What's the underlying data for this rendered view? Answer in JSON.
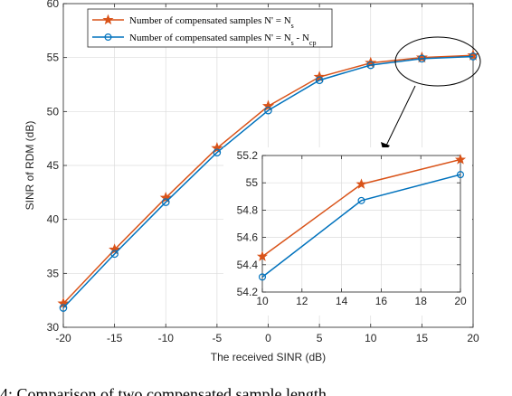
{
  "chart_data": [
    {
      "type": "line",
      "xlabel": "The received SINR (dB)",
      "ylabel": "SINR of RDM (dB)",
      "xlim": [
        -20,
        20
      ],
      "ylim": [
        30,
        60
      ],
      "xticks": [
        "-20",
        "-15",
        "-10",
        "-5",
        "0",
        "5",
        "10",
        "15",
        "20"
      ],
      "yticks": [
        "30",
        "35",
        "40",
        "45",
        "50",
        "55",
        "60"
      ],
      "grid": true,
      "legend_position": "top-left",
      "x": [
        -20,
        -15,
        -10,
        -5,
        0,
        5,
        10,
        15,
        20
      ],
      "series": [
        {
          "name": "Number of compensated samples N' = Ns",
          "legend_base": "Number of compensated samples N' = N",
          "legend_sub": "s",
          "color": "#d95319",
          "marker": "star",
          "values": [
            32.2,
            37.2,
            42.0,
            46.6,
            50.5,
            53.2,
            54.5,
            55.0,
            55.2
          ]
        },
        {
          "name": "Number of compensated samples N' = Ns - Ncp",
          "legend_base": "Number of compensated samples N' = N",
          "legend_sub": "s",
          "legend_mid": " - N",
          "legend_sub2": "cp",
          "color": "#0072bd",
          "marker": "circle",
          "values": [
            31.8,
            36.8,
            41.6,
            46.2,
            50.1,
            52.9,
            54.3,
            54.9,
            55.1
          ]
        }
      ]
    },
    {
      "type": "line",
      "xlim": [
        10,
        20
      ],
      "ylim": [
        54.2,
        55.2
      ],
      "xticks": [
        "10",
        "12",
        "14",
        "16",
        "18",
        "20"
      ],
      "yticks": [
        "54.2",
        "54.4",
        "54.6",
        "54.8",
        "55",
        "55.2"
      ],
      "grid": true,
      "x": [
        10,
        15,
        20
      ],
      "series": [
        {
          "color": "#d95319",
          "marker": "star",
          "values": [
            54.46,
            54.99,
            55.17
          ]
        },
        {
          "color": "#0072bd",
          "marker": "circle",
          "values": [
            54.31,
            54.87,
            55.06
          ]
        }
      ]
    }
  ],
  "caption": "4: Comparison of two compensated sample length"
}
